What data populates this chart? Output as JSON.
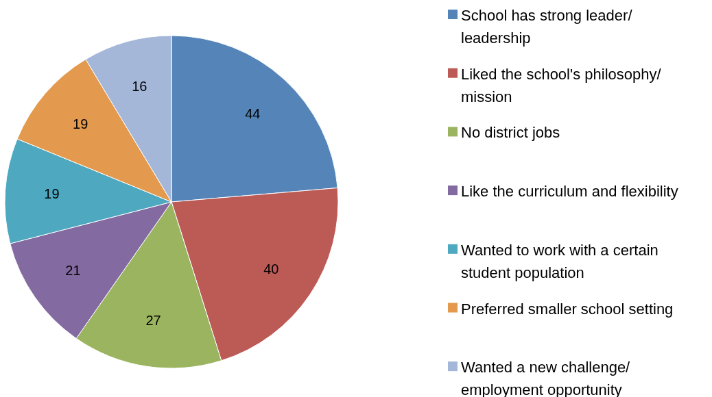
{
  "chart_data": {
    "type": "pie",
    "categories": [
      "School has strong leader/ leadership",
      "Liked the school's philosophy/ mission",
      "No district jobs",
      "Like the curriculum and flexibility",
      "Wanted to work with a certain student population",
      "Preferred smaller school setting",
      "Wanted a new challenge/ employment opportunity"
    ],
    "values": [
      44,
      40,
      27,
      21,
      19,
      19,
      16
    ],
    "colors": [
      "#5585b8",
      "#bc5a55",
      "#9bb45f",
      "#836aa0",
      "#4ea8c0",
      "#e39a4e",
      "#a4b7d9"
    ],
    "data_labels": true,
    "legend": "right"
  }
}
